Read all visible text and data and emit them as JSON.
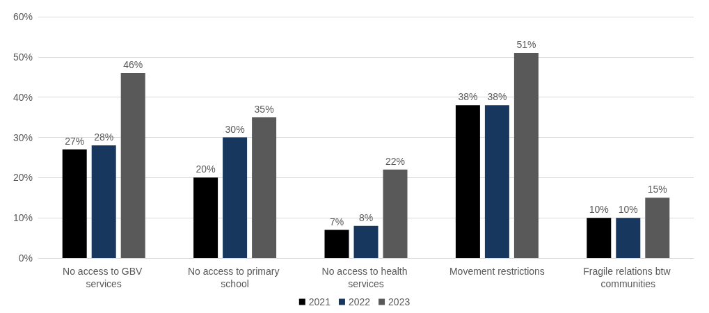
{
  "chart_data": {
    "type": "bar",
    "categories": [
      "No access to GBV services",
      "No access to primary school",
      "No access to health services",
      "Movement restrictions",
      "Fragile relations btw communities"
    ],
    "series": [
      {
        "name": "2021",
        "color": "#000000",
        "values": [
          27,
          20,
          7,
          38,
          10
        ],
        "value_labels": [
          "27%",
          "20%",
          "7%",
          "38%",
          "10%"
        ]
      },
      {
        "name": "2022",
        "color": "#17375e",
        "values": [
          28,
          30,
          8,
          38,
          10
        ],
        "value_labels": [
          "28%",
          "30%",
          "8%",
          "38%",
          "10%"
        ]
      },
      {
        "name": "2023",
        "color": "#595959",
        "values": [
          46,
          35,
          22,
          51,
          15
        ],
        "value_labels": [
          "46%",
          "35%",
          "22%",
          "51%",
          "15%"
        ]
      }
    ],
    "ylim": [
      0,
      60
    ],
    "yticks": [
      {
        "value": 0,
        "label": "0%"
      },
      {
        "value": 10,
        "label": "10%"
      },
      {
        "value": 20,
        "label": "20%"
      },
      {
        "value": 30,
        "label": "30%"
      },
      {
        "value": 40,
        "label": "40%"
      },
      {
        "value": 50,
        "label": "50%"
      },
      {
        "value": 60,
        "label": "60%"
      }
    ],
    "grid": "y",
    "legend": "bottom"
  }
}
